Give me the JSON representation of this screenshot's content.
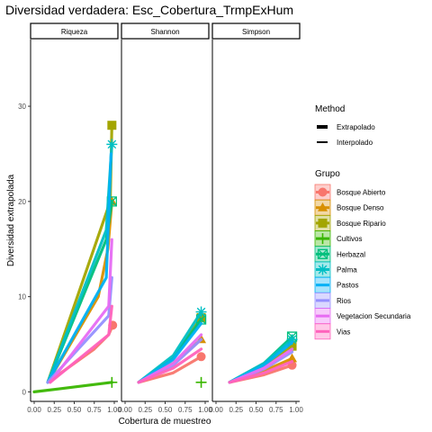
{
  "chart_data": {
    "type": "line",
    "title": "Diversidad verdadera: Esc_Cobertura_TrmpExHum",
    "xlabel": "Cobertura de muestreo",
    "ylabel": "Diversidad extrapolada",
    "xlim": [
      0,
      1
    ],
    "ylim": [
      -1,
      37
    ],
    "x_ticks": [
      "0.00",
      "0.25",
      "0.50",
      "0.75",
      "1.00"
    ],
    "y_ticks": [
      0,
      10,
      20,
      30
    ],
    "grid": false,
    "facets": [
      "Riqueza",
      "Shannon",
      "Simpson"
    ],
    "legend_position": "right",
    "method_legend": {
      "title": "Method",
      "items": [
        {
          "label": "Extrapolado",
          "linewidth": 4
        },
        {
          "label": "Interpolado",
          "linewidth": 2
        }
      ]
    },
    "group_legend": {
      "title": "Grupo",
      "items": [
        {
          "label": "Bosque Abierto",
          "color": "#F8766D",
          "shape": "circle"
        },
        {
          "label": "Bosque Denso",
          "color": "#D89000",
          "shape": "triangle"
        },
        {
          "label": "Bosque Ripario",
          "color": "#A3A500",
          "shape": "square"
        },
        {
          "label": "Cultivos",
          "color": "#39B600",
          "shape": "plus"
        },
        {
          "label": "Herbazal",
          "color": "#00BF7D",
          "shape": "boxx"
        },
        {
          "label": "Palma",
          "color": "#00BFC4",
          "shape": "asterisk"
        },
        {
          "label": "Pastos",
          "color": "#00B0F6",
          "shape": "none"
        },
        {
          "label": "Rios",
          "color": "#9590FF",
          "shape": "none"
        },
        {
          "label": "Vegetacion Secundaria",
          "color": "#E76BF3",
          "shape": "none"
        },
        {
          "label": "Vias",
          "color": "#FF62BC",
          "shape": "none"
        }
      ]
    },
    "series": [
      {
        "group": "Bosque Abierto",
        "facet": "Riqueza",
        "points": [
          [
            0.17,
            1
          ],
          [
            0.75,
            4.5
          ],
          [
            0.93,
            6
          ],
          [
            0.98,
            7
          ]
        ],
        "observed": [
          0.98,
          7
        ]
      },
      {
        "group": "Bosque Denso",
        "facet": "Riqueza",
        "points": [
          [
            0.17,
            1
          ],
          [
            0.8,
            10
          ],
          [
            0.92,
            15
          ],
          [
            0.97,
            20
          ]
        ],
        "observed": [
          0.97,
          20
        ]
      },
      {
        "group": "Bosque Ripario",
        "facet": "Riqueza",
        "points": [
          [
            0.17,
            1
          ],
          [
            0.95,
            20
          ],
          [
            0.97,
            28
          ]
        ],
        "observed": [
          0.97,
          28
        ]
      },
      {
        "group": "Cultivos",
        "facet": "Riqueza",
        "points": [
          [
            0,
            0
          ],
          [
            0.3,
            0.3
          ],
          [
            0.97,
            1
          ]
        ],
        "observed": [
          0.97,
          1
        ]
      },
      {
        "group": "Herbazal",
        "facet": "Riqueza",
        "points": [
          [
            0.17,
            1
          ],
          [
            0.9,
            16
          ],
          [
            0.97,
            20
          ]
        ],
        "observed": [
          0.97,
          20
        ]
      },
      {
        "group": "Palma",
        "facet": "Riqueza",
        "points": [
          [
            0.17,
            1
          ],
          [
            0.9,
            17
          ],
          [
            0.97,
            26
          ]
        ],
        "observed": [
          0.97,
          26
        ]
      },
      {
        "group": "Pastos",
        "facet": "Riqueza",
        "points": [
          [
            0.17,
            1
          ],
          [
            0.9,
            12
          ],
          [
            0.96,
            25
          ]
        ],
        "observed": [
          0.96,
          25
        ]
      },
      {
        "group": "Rios",
        "facet": "Riqueza",
        "points": [
          [
            0.17,
            1
          ],
          [
            0.93,
            8
          ],
          [
            0.97,
            12
          ]
        ],
        "observed": [
          0.97,
          12
        ]
      },
      {
        "group": "Vegetacion Secundaria",
        "facet": "Riqueza",
        "points": [
          [
            0.2,
            1
          ],
          [
            0.93,
            9
          ],
          [
            0.97,
            16
          ]
        ],
        "observed": [
          0.97,
          16
        ]
      },
      {
        "group": "Vias",
        "facet": "Riqueza",
        "points": [
          [
            0.2,
            1
          ],
          [
            0.93,
            6
          ],
          [
            0.97,
            9
          ]
        ],
        "observed": [
          0.97,
          9
        ]
      },
      {
        "group": "Bosque Abierto",
        "facet": "Shannon",
        "points": [
          [
            0.17,
            1
          ],
          [
            0.6,
            2
          ],
          [
            0.95,
            3.7
          ]
        ],
        "observed": [
          0.95,
          3.7
        ]
      },
      {
        "group": "Bosque Denso",
        "facet": "Shannon",
        "points": [
          [
            0.17,
            1
          ],
          [
            0.6,
            3
          ],
          [
            0.95,
            5.5
          ]
        ],
        "observed": [
          0.95,
          5.5
        ]
      },
      {
        "group": "Bosque Ripario",
        "facet": "Shannon",
        "points": [
          [
            0.17,
            1
          ],
          [
            0.6,
            3.5
          ],
          [
            0.95,
            7.8
          ]
        ],
        "observed": [
          0.95,
          7.8
        ]
      },
      {
        "group": "Cultivos",
        "facet": "Shannon",
        "points": [
          [
            0.95,
            1
          ]
        ],
        "observed": [
          0.95,
          1
        ]
      },
      {
        "group": "Herbazal",
        "facet": "Shannon",
        "points": [
          [
            0.17,
            1
          ],
          [
            0.6,
            3.5
          ],
          [
            0.95,
            7.6
          ]
        ],
        "observed": [
          0.95,
          7.6
        ]
      },
      {
        "group": "Palma",
        "facet": "Shannon",
        "points": [
          [
            0.17,
            1
          ],
          [
            0.6,
            3.8
          ],
          [
            0.95,
            8.4
          ]
        ],
        "observed": [
          0.95,
          8.4
        ]
      },
      {
        "group": "Pastos",
        "facet": "Shannon",
        "points": [
          [
            0.17,
            1
          ],
          [
            0.6,
            3.4
          ],
          [
            0.95,
            7.2
          ]
        ],
        "observed": [
          0.95,
          7.2
        ]
      },
      {
        "group": "Rios",
        "facet": "Shannon",
        "points": [
          [
            0.17,
            1
          ],
          [
            0.6,
            2.8
          ],
          [
            0.95,
            5.5
          ]
        ],
        "observed": [
          0.95,
          5.5
        ]
      },
      {
        "group": "Vegetacion Secundaria",
        "facet": "Shannon",
        "points": [
          [
            0.17,
            1
          ],
          [
            0.6,
            3
          ],
          [
            0.95,
            6
          ]
        ],
        "observed": [
          0.95,
          6
        ]
      },
      {
        "group": "Vias",
        "facet": "Shannon",
        "points": [
          [
            0.17,
            1
          ],
          [
            0.6,
            2.5
          ],
          [
            0.95,
            4.5
          ]
        ],
        "observed": [
          0.95,
          4.5
        ]
      },
      {
        "group": "Bosque Abierto",
        "facet": "Simpson",
        "points": [
          [
            0.17,
            1
          ],
          [
            0.6,
            1.8
          ],
          [
            0.95,
            2.8
          ]
        ],
        "observed": [
          0.95,
          2.8
        ]
      },
      {
        "group": "Bosque Denso",
        "facet": "Simpson",
        "points": [
          [
            0.17,
            1
          ],
          [
            0.6,
            2.2
          ],
          [
            0.95,
            3.5
          ]
        ],
        "observed": [
          0.95,
          3.5
        ]
      },
      {
        "group": "Bosque Ripario",
        "facet": "Simpson",
        "points": [
          [
            0.17,
            1
          ],
          [
            0.6,
            2.8
          ],
          [
            0.95,
            4.8
          ]
        ],
        "observed": [
          0.95,
          4.8
        ]
      },
      {
        "group": "Herbazal",
        "facet": "Simpson",
        "points": [
          [
            0.17,
            1
          ],
          [
            0.6,
            3
          ],
          [
            0.95,
            5.8
          ]
        ],
        "observed": [
          0.95,
          5.8
        ]
      },
      {
        "group": "Palma",
        "facet": "Simpson",
        "points": [
          [
            0.17,
            1
          ],
          [
            0.6,
            3
          ],
          [
            0.95,
            5.5
          ]
        ],
        "observed": [
          0.95,
          5.5
        ]
      },
      {
        "group": "Pastos",
        "facet": "Simpson",
        "points": [
          [
            0.17,
            1
          ],
          [
            0.6,
            2.8
          ],
          [
            0.95,
            5.2
          ]
        ],
        "observed": [
          0.95,
          5.2
        ]
      },
      {
        "group": "Rios",
        "facet": "Simpson",
        "points": [
          [
            0.17,
            1
          ],
          [
            0.6,
            2.4
          ],
          [
            0.95,
            4.2
          ]
        ],
        "observed": [
          0.95,
          4.2
        ]
      },
      {
        "group": "Vegetacion Secundaria",
        "facet": "Simpson",
        "points": [
          [
            0.17,
            1
          ],
          [
            0.6,
            2.5
          ],
          [
            0.95,
            4.5
          ]
        ],
        "observed": [
          0.95,
          4.5
        ]
      },
      {
        "group": "Vias",
        "facet": "Simpson",
        "points": [
          [
            0.17,
            1
          ],
          [
            0.6,
            2
          ],
          [
            0.95,
            3.2
          ]
        ],
        "observed": [
          0.95,
          3.2
        ]
      }
    ]
  }
}
